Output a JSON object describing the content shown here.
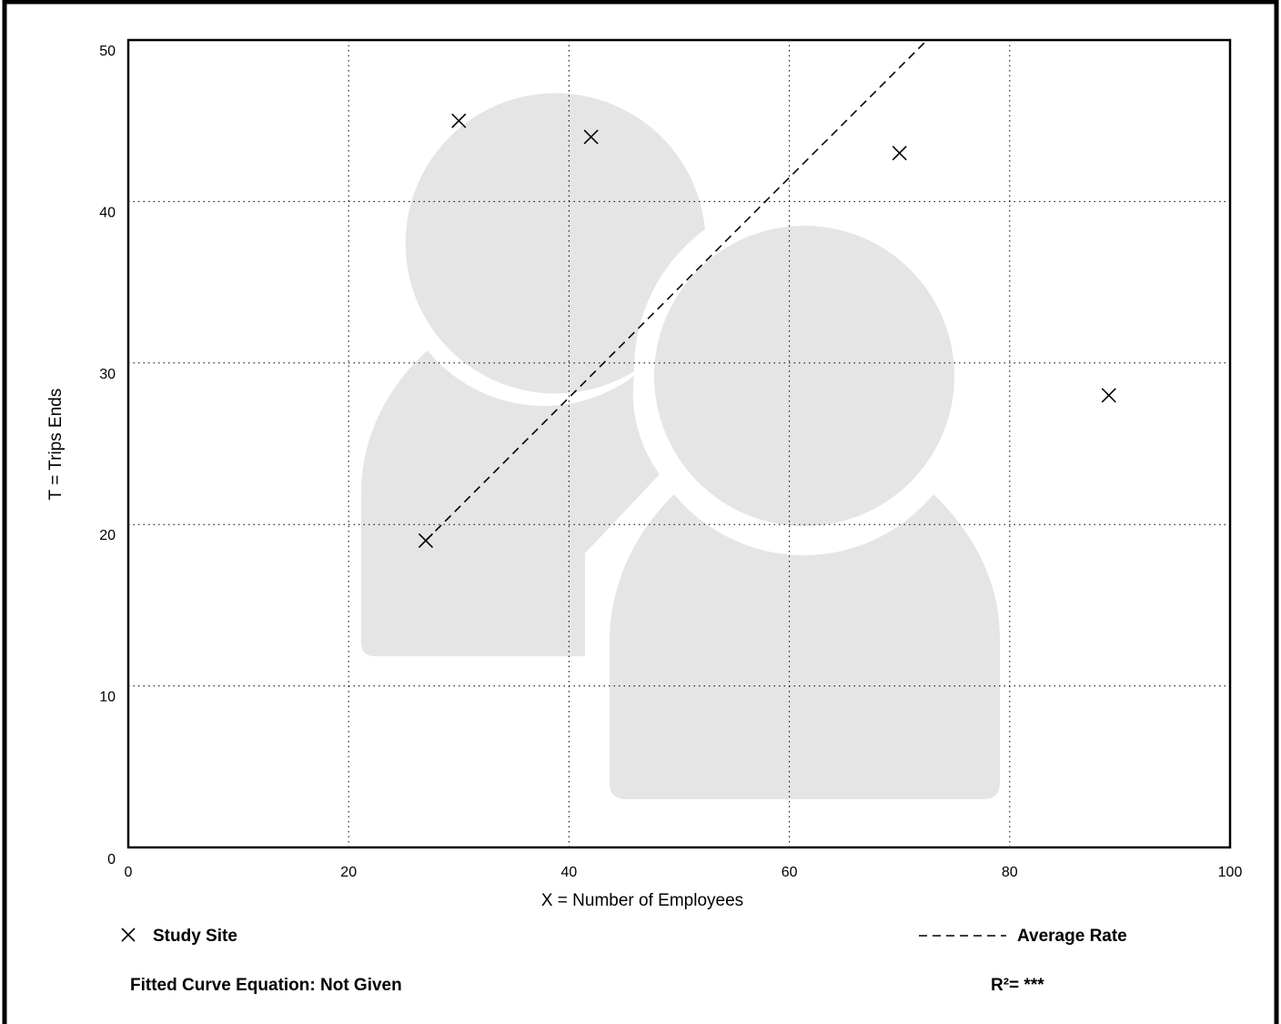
{
  "chart_data": {
    "type": "scatter",
    "xlabel": "X = Number of Employees",
    "ylabel": "T = Trips Ends",
    "xlim": [
      0,
      100
    ],
    "ylim": [
      0,
      50
    ],
    "x_ticks": [
      "0",
      "20",
      "40",
      "60",
      "80",
      "100"
    ],
    "y_ticks": [
      "0",
      "10",
      "20",
      "30",
      "40",
      "50"
    ],
    "grid": true,
    "series": [
      {
        "name": "Study Site",
        "marker": "x",
        "points": [
          {
            "x": 27,
            "y": 19
          },
          {
            "x": 30,
            "y": 45
          },
          {
            "x": 42,
            "y": 44
          },
          {
            "x": 70,
            "y": 43
          },
          {
            "x": 89,
            "y": 28
          }
        ]
      },
      {
        "name": "Average Rate",
        "style": "dashed-line",
        "points": [
          {
            "x": 27,
            "y": 19
          },
          {
            "x": 72.5,
            "y": 50
          }
        ]
      }
    ],
    "legend": {
      "study_site_label": "Study Site",
      "average_rate_label": "Average Rate",
      "placement": "bottom"
    },
    "annotations": {
      "fitted_curve": "Fitted Curve Equation: Not Given",
      "r_squared": "R²= ***"
    },
    "colors": {
      "marks": "#000000",
      "watermark": "#e5e5e5",
      "grid": "#000000"
    }
  }
}
